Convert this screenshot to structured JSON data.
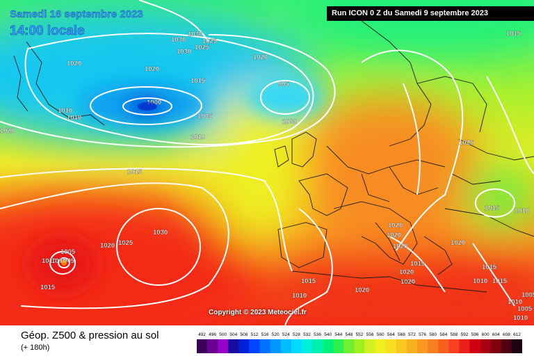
{
  "header": {
    "date_title": "Samedi 16 septembre 2023",
    "time_title": "14:00 locale",
    "run_info": "Run ICON 0 Z du Samedi 9 septembre 2023"
  },
  "map": {
    "copyright": "Copyright © 2023 Meteociel.fr",
    "isobar_labels": [
      "1030",
      "1030",
      "1030",
      "1025",
      "1025",
      "1020",
      "1020",
      "1020",
      "1015",
      "1015",
      "995",
      "1000",
      "1000",
      "1010",
      "1010",
      "1010",
      "1005",
      "1010",
      "1020",
      "1015",
      "1025",
      "1015",
      "1010",
      "1030",
      "1020",
      "1025",
      "1005",
      "1010",
      "1005",
      "1015",
      "1020",
      "1020",
      "1020",
      "1020",
      "1020",
      "1020",
      "1015",
      "1015",
      "1010",
      "1020",
      "1015",
      "1010",
      "1015",
      "1010",
      "1010",
      "1005",
      "1005"
    ],
    "background_color": "#ffffff"
  },
  "footer": {
    "title": "Géop. Z500 & pression au sol",
    "subtitle": "(+ 180h)",
    "scale_labels": [
      "492",
      "496",
      "500",
      "504",
      "508",
      "512",
      "516",
      "520",
      "524",
      "528",
      "532",
      "536",
      "540",
      "544",
      "548",
      "552",
      "556",
      "560",
      "564",
      "568",
      "572",
      "576",
      "580",
      "584",
      "588",
      "592",
      "596",
      "600",
      "604",
      "608",
      "612"
    ],
    "scale_colors": [
      "#3d005a",
      "#6a0090",
      "#9400c8",
      "#1a0aa0",
      "#0022d6",
      "#0044ff",
      "#0070ff",
      "#0096ff",
      "#00bcff",
      "#00dcff",
      "#00f0e0",
      "#00f0b0",
      "#00f080",
      "#30f050",
      "#70f030",
      "#a0f020",
      "#d0f020",
      "#f0f020",
      "#f8e020",
      "#f8c820",
      "#f8b020",
      "#f89820",
      "#f88020",
      "#f86020",
      "#f84020",
      "#e82018",
      "#d00010",
      "#a80010",
      "#800010",
      "#500010",
      "#200010"
    ]
  }
}
